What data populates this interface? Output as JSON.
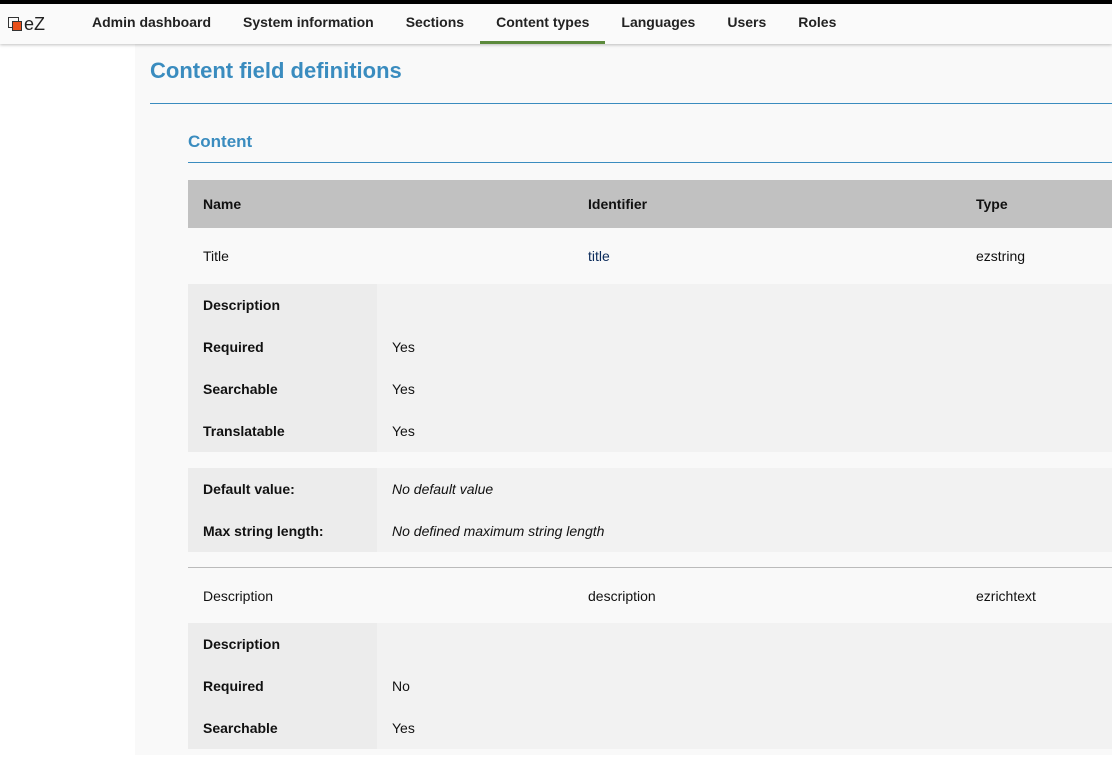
{
  "nav": {
    "logo": "eZ",
    "tabs": [
      {
        "label": "Admin dashboard"
      },
      {
        "label": "System information"
      },
      {
        "label": "Sections"
      },
      {
        "label": "Content types",
        "active": true
      },
      {
        "label": "Languages"
      },
      {
        "label": "Users"
      },
      {
        "label": "Roles"
      }
    ]
  },
  "page": {
    "title": "Content field definitions",
    "group": "Content"
  },
  "table": {
    "headers": [
      "Name",
      "Identifier",
      "Type"
    ],
    "fields": [
      {
        "name": "Title",
        "identifier": "title",
        "type": "ezstring",
        "attrs": {
          "description_label": "Description",
          "description": "",
          "required_label": "Required",
          "required": "Yes",
          "searchable_label": "Searchable",
          "searchable": "Yes",
          "translatable_label": "Translatable",
          "translatable": "Yes"
        },
        "settings": [
          {
            "label": "Default value:",
            "value": "No default value"
          },
          {
            "label": "Max string length:",
            "value": "No defined maximum string length"
          }
        ]
      },
      {
        "name": "Description",
        "identifier": "description",
        "type": "ezrichtext",
        "attrs": {
          "description_label": "Description",
          "description": "",
          "required_label": "Required",
          "required": "No",
          "searchable_label": "Searchable",
          "searchable": "Yes"
        }
      }
    ]
  },
  "colors": {
    "accent": "#3a8cbf",
    "active_tab": "#5c8a3c",
    "header_bg": "#c1c1c1"
  }
}
